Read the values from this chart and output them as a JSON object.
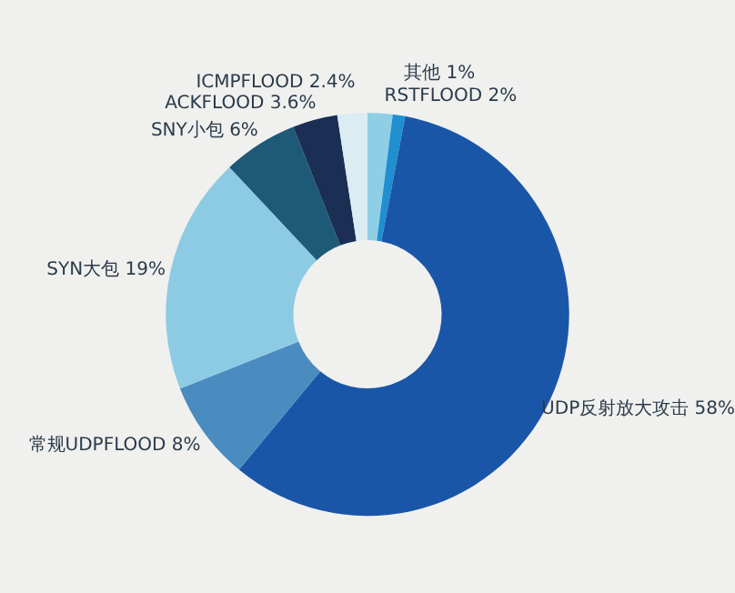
{
  "chart_data": {
    "type": "donut",
    "categories": [
      "RSTFLOOD",
      "其他",
      "UDP反射放大攻击",
      "常规UDPFLOOD",
      "SYN大包",
      "SNY小包",
      "ACKFLOOD",
      "ICMPFLOOD"
    ],
    "values": [
      2,
      1,
      58,
      8,
      19,
      6,
      3.6,
      2.4
    ],
    "value_labels": [
      "2%",
      "1%",
      "58%",
      "8%",
      "19%",
      "6%",
      "3.6%",
      "2.4%"
    ],
    "colors": [
      "#8fcfe6",
      "#1f8fd0",
      "#1a56a8",
      "#4a8cc0",
      "#8ccbe3",
      "#1e5a78",
      "#1b2f55",
      "#dbecf3"
    ]
  }
}
